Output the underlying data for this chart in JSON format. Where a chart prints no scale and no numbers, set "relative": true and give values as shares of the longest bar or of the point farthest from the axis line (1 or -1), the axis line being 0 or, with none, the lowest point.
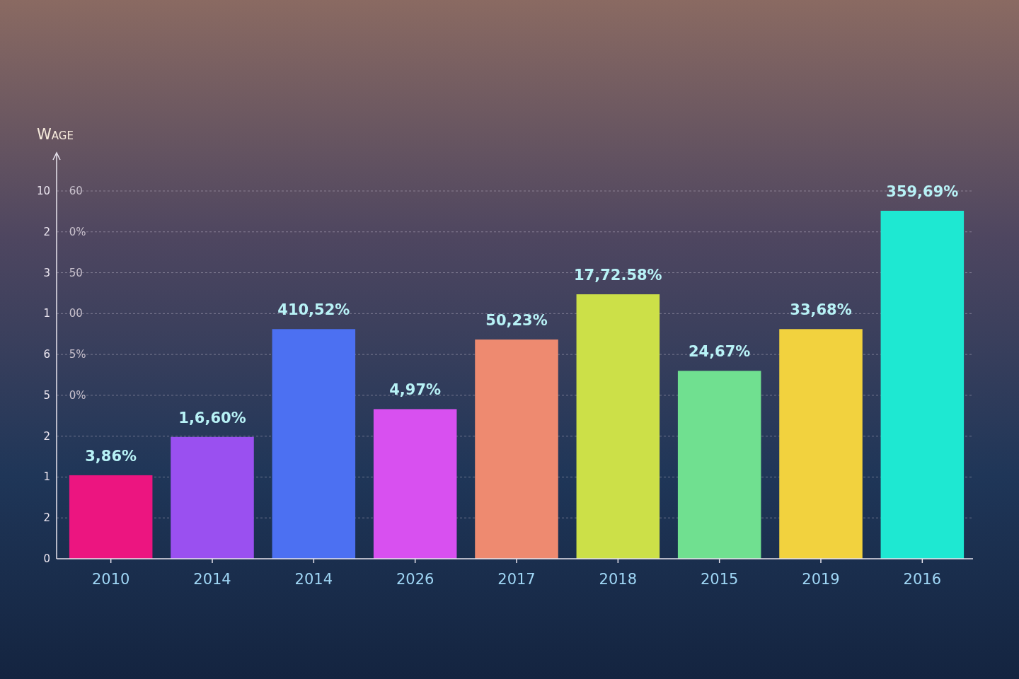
{
  "chart_data": {
    "type": "bar",
    "ylabel": "Wage",
    "categories": [
      "2010",
      "2014",
      "2014",
      "2026",
      "2017",
      "2018",
      "2015",
      "2019",
      "2016"
    ],
    "values": [
      0.24,
      0.35,
      0.66,
      0.43,
      0.63,
      0.76,
      0.54,
      0.66,
      1
    ],
    "relative": true,
    "colors": [
      "#ec1580",
      "#9a50f0",
      "#4c70f2",
      "#d850f0",
      "#ee8a70",
      "#cce048",
      "#70e090",
      "#f2d23e",
      "#1ee8d2"
    ],
    "annotations": [
      "10 60",
      "2 0%",
      "3 50",
      "1 00",
      "6 5%",
      "5 0%",
      "2",
      "1",
      "2",
      "0",
      {
        "text": "3,86%",
        "x": "2010",
        "y": 0.24
      },
      {
        "text": "1,6,60%",
        "x": "2014",
        "y": 0.35
      },
      {
        "text": "410,52%",
        "y": 0.66
      },
      {
        "text": "4,97%",
        "x": "2026",
        "y": 0.43
      },
      {
        "text": "50,23%",
        "x": "2017",
        "y": 0.63
      },
      {
        "text": "17,72.58%",
        "x": "2018",
        "y": 0.76
      },
      {
        "text": "24,67%",
        "x": "2015",
        "y": 0.54
      },
      {
        "text": "33,68%",
        "x": "2019",
        "y": 0.66
      },
      {
        "text": "359,69%",
        "x": "2016",
        "y": 1
      }
    ],
    "grid": true
  }
}
